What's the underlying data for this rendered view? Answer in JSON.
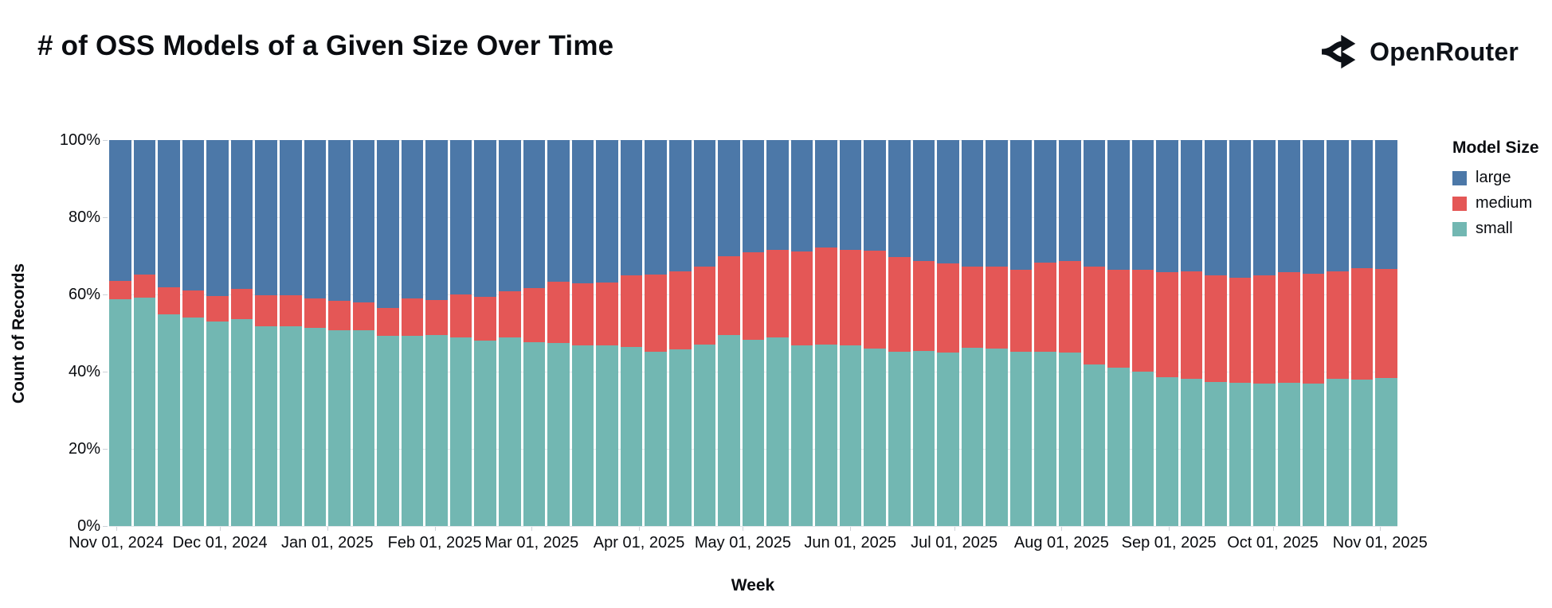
{
  "header": {
    "title": "# of OSS Models of a Given Size Over Time",
    "brand": {
      "name": "OpenRouter",
      "icon": "openrouter-route-split-icon"
    }
  },
  "chart_data": {
    "type": "bar",
    "stacked": true,
    "normalized_percent": true,
    "title": "# of OSS Models of a Given Size Over Time",
    "xlabel": "Week",
    "ylabel": "Count of Records",
    "ylim": [
      0,
      100
    ],
    "grid": true,
    "y_ticks": [
      {
        "label": "0%",
        "value": 0
      },
      {
        "label": "20%",
        "value": 20
      },
      {
        "label": "40%",
        "value": 40
      },
      {
        "label": "60%",
        "value": 60
      },
      {
        "label": "80%",
        "value": 80
      },
      {
        "label": "100%",
        "value": 100
      }
    ],
    "x_tick_labels": [
      "Nov 01, 2024",
      "Dec 01, 2024",
      "Jan 01, 2025",
      "Feb 01, 2025",
      "Mar 01, 2025",
      "Apr 01, 2025",
      "May 01, 2025",
      "Jun 01, 2025",
      "Jul 01, 2025",
      "Aug 01, 2025",
      "Sep 01, 2025",
      "Oct 01, 2025",
      "Nov 01, 2025"
    ],
    "legend": {
      "title": "Model Size",
      "position": "right",
      "entries": [
        {
          "label": "large",
          "color": "#4c78a8"
        },
        {
          "label": "medium",
          "color": "#e45756"
        },
        {
          "label": "small",
          "color": "#72b7b2"
        }
      ]
    },
    "weeks": [
      "2024-10-27",
      "2024-11-03",
      "2024-11-10",
      "2024-11-17",
      "2024-11-24",
      "2024-12-01",
      "2024-12-08",
      "2024-12-15",
      "2024-12-22",
      "2024-12-29",
      "2025-01-05",
      "2025-01-12",
      "2025-01-19",
      "2025-01-26",
      "2025-02-02",
      "2025-02-09",
      "2025-02-16",
      "2025-02-23",
      "2025-03-02",
      "2025-03-09",
      "2025-03-16",
      "2025-03-23",
      "2025-03-30",
      "2025-04-06",
      "2025-04-13",
      "2025-04-20",
      "2025-04-27",
      "2025-05-04",
      "2025-05-11",
      "2025-05-18",
      "2025-05-25",
      "2025-06-01",
      "2025-06-08",
      "2025-06-15",
      "2025-06-22",
      "2025-06-29",
      "2025-07-06",
      "2025-07-13",
      "2025-07-20",
      "2025-07-27",
      "2025-08-03",
      "2025-08-10",
      "2025-08-17",
      "2025-08-24",
      "2025-08-31",
      "2025-09-07",
      "2025-09-14",
      "2025-09-21",
      "2025-09-28",
      "2025-10-05",
      "2025-10-12",
      "2025-10-19",
      "2025-10-26"
    ],
    "series": [
      {
        "name": "small",
        "color": "#72b7b2",
        "values": [
          58.8,
          59.2,
          54.8,
          54.0,
          53.0,
          53.7,
          51.8,
          51.8,
          51.3,
          50.8,
          50.8,
          49.2,
          49.2,
          49.4,
          48.8,
          48.1,
          48.8,
          47.7,
          47.4,
          46.8,
          46.7,
          46.3,
          45.1,
          45.7,
          47.1,
          49.4,
          48.3,
          48.9,
          46.9,
          47.1,
          46.7,
          45.9,
          45.1,
          45.4,
          45.0,
          46.1,
          46.0,
          45.1,
          45.2,
          44.9,
          41.9,
          41.0,
          39.9,
          38.6,
          38.1,
          37.4,
          37.2,
          37.0,
          37.2,
          37.0,
          38.1,
          37.9,
          38.3
        ]
      },
      {
        "name": "medium",
        "color": "#e45756",
        "values": [
          4.8,
          6.0,
          7.0,
          7.0,
          6.6,
          7.8,
          7.9,
          8.0,
          7.6,
          7.6,
          7.1,
          7.3,
          9.8,
          9.1,
          11.2,
          11.3,
          12.0,
          13.9,
          15.8,
          16.1,
          16.4,
          18.7,
          20.0,
          20.3,
          20.1,
          20.5,
          22.6,
          22.7,
          24.2,
          25.0,
          24.8,
          25.5,
          24.5,
          23.3,
          23.1,
          21.1,
          21.3,
          21.2,
          23.1,
          23.7,
          25.3,
          25.4,
          26.5,
          27.2,
          27.8,
          27.6,
          27.2,
          28.0,
          28.6,
          28.3,
          27.9,
          29.0,
          28.2
        ]
      },
      {
        "name": "large",
        "color": "#4c78a8",
        "values": [
          36.4,
          34.8,
          38.2,
          39.0,
          40.4,
          38.5,
          40.3,
          40.2,
          41.1,
          41.6,
          42.1,
          43.5,
          41.0,
          41.5,
          40.0,
          40.6,
          39.2,
          38.4,
          36.8,
          37.1,
          36.9,
          35.0,
          34.9,
          34.0,
          32.8,
          30.1,
          29.1,
          28.4,
          28.9,
          27.9,
          28.5,
          28.6,
          30.4,
          31.3,
          31.9,
          32.8,
          32.7,
          33.7,
          31.7,
          31.4,
          32.8,
          33.6,
          33.6,
          34.2,
          34.1,
          35.0,
          35.6,
          35.0,
          34.2,
          34.7,
          34.0,
          33.1,
          33.5
        ]
      }
    ]
  }
}
